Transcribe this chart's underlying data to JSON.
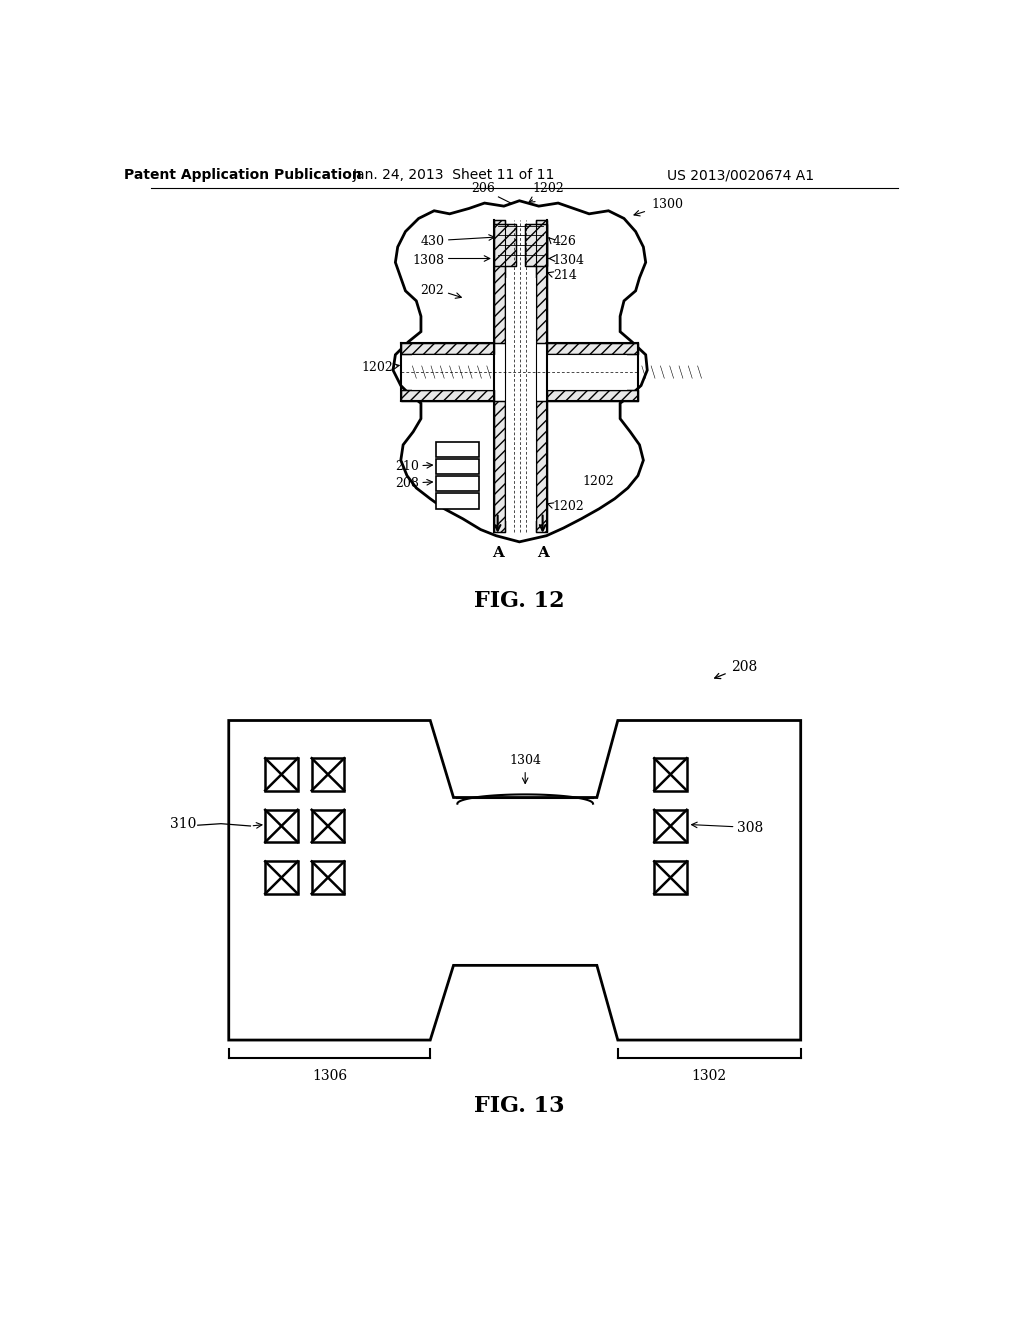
{
  "bg_color": "#ffffff",
  "header_text": "Patent Application Publication",
  "header_date": "Jan. 24, 2013  Sheet 11 of 11",
  "header_patent": "US 2013/0020674 A1",
  "fig12_label": "FIG. 12",
  "fig13_label": "FIG. 13",
  "line_color": "#000000",
  "font_size_header": 10,
  "font_size_label": 14,
  "font_size_annot": 9
}
